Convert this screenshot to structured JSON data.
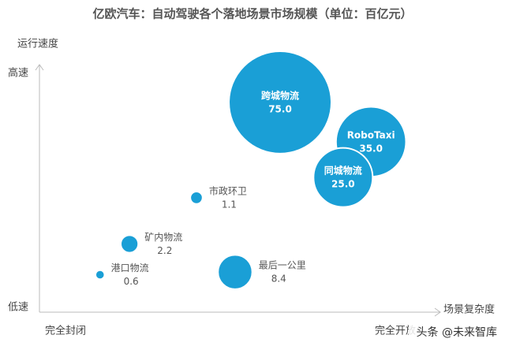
{
  "chart_data": {
    "type": "bubble",
    "title": "亿欧汽车：自动驾驶各个落地场景市场规模（单位：百亿元）",
    "y_axis_label": "运行速度",
    "x_axis_label": "场景复杂度",
    "y_high_label": "高速",
    "y_low_label": "低速",
    "x_low_label": "完全封闭",
    "x_high_label": "完全开放",
    "xlim": [
      0,
      10
    ],
    "ylim": [
      0,
      10
    ],
    "color": "#1a9fd6",
    "series": [
      {
        "names": [
          "跨城物流",
          "RoboTaxi",
          "同城物流",
          "市政环卫",
          "矿内物流",
          "港口物流",
          "最后一公里"
        ],
        "x": [
          6.04,
          8.32,
          7.62,
          3.94,
          2.26,
          1.52,
          4.91
        ],
        "y": [
          8.55,
          6.94,
          5.48,
          4.65,
          2.76,
          1.5,
          1.61
        ],
        "sizes": [
          75,
          35,
          25,
          1.1,
          2.2,
          0.6,
          8.4
        ],
        "value_labels": [
          "75.0",
          "35.0",
          "25.0",
          "1.1",
          "2.2",
          "0.6",
          "8.4"
        ]
      }
    ],
    "watermark": "头条 @未来智库"
  }
}
